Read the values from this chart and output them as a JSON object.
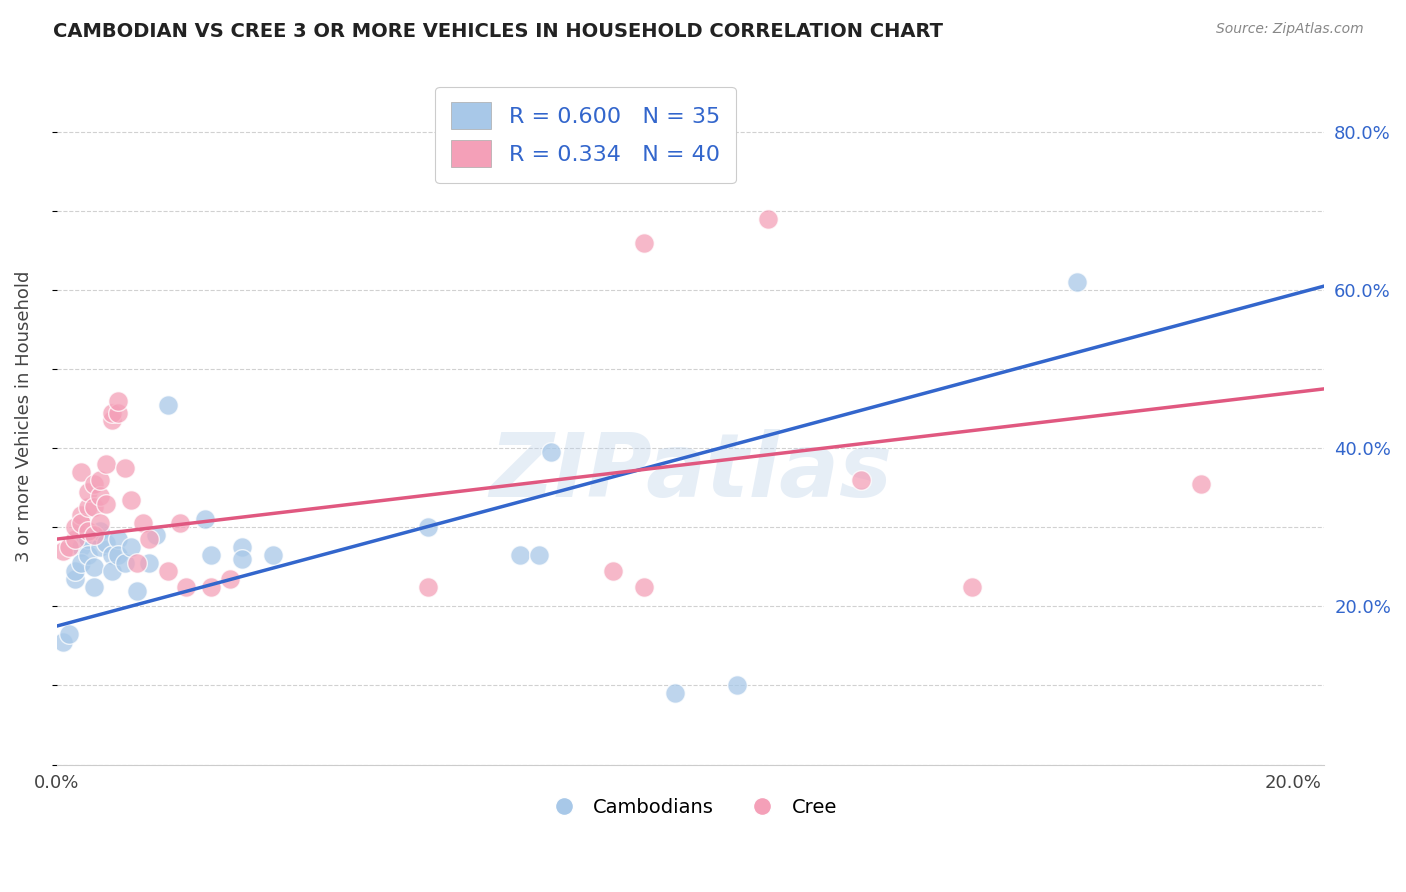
{
  "title": "CAMBODIAN VS CREE 3 OR MORE VEHICLES IN HOUSEHOLD CORRELATION CHART",
  "source": "Source: ZipAtlas.com",
  "ylabel": "3 or more Vehicles in Household",
  "xlabel_label_cambodians": "Cambodians",
  "xlabel_label_cree": "Cree",
  "watermark": "ZIPatlas",
  "blue_R": 0.6,
  "blue_N": 35,
  "pink_R": 0.334,
  "pink_N": 40,
  "xlim": [
    0.0,
    0.205
  ],
  "ylim": [
    0.0,
    0.88
  ],
  "blue_color": "#a8c8e8",
  "pink_color": "#f4a0b8",
  "blue_line_color": "#3366cc",
  "pink_line_color": "#e05880",
  "blue_scatter": [
    [
      0.001,
      0.155
    ],
    [
      0.002,
      0.165
    ],
    [
      0.003,
      0.235
    ],
    [
      0.003,
      0.245
    ],
    [
      0.004,
      0.275
    ],
    [
      0.004,
      0.255
    ],
    [
      0.005,
      0.285
    ],
    [
      0.005,
      0.265
    ],
    [
      0.006,
      0.25
    ],
    [
      0.006,
      0.225
    ],
    [
      0.007,
      0.275
    ],
    [
      0.007,
      0.295
    ],
    [
      0.008,
      0.28
    ],
    [
      0.009,
      0.265
    ],
    [
      0.009,
      0.245
    ],
    [
      0.01,
      0.285
    ],
    [
      0.01,
      0.265
    ],
    [
      0.011,
      0.255
    ],
    [
      0.012,
      0.275
    ],
    [
      0.013,
      0.22
    ],
    [
      0.015,
      0.255
    ],
    [
      0.016,
      0.29
    ],
    [
      0.018,
      0.455
    ],
    [
      0.024,
      0.31
    ],
    [
      0.025,
      0.265
    ],
    [
      0.03,
      0.275
    ],
    [
      0.03,
      0.26
    ],
    [
      0.035,
      0.265
    ],
    [
      0.06,
      0.3
    ],
    [
      0.075,
      0.265
    ],
    [
      0.078,
      0.265
    ],
    [
      0.08,
      0.395
    ],
    [
      0.1,
      0.09
    ],
    [
      0.11,
      0.1
    ],
    [
      0.165,
      0.61
    ]
  ],
  "pink_scatter": [
    [
      0.001,
      0.27
    ],
    [
      0.002,
      0.275
    ],
    [
      0.003,
      0.285
    ],
    [
      0.003,
      0.3
    ],
    [
      0.004,
      0.315
    ],
    [
      0.004,
      0.305
    ],
    [
      0.004,
      0.37
    ],
    [
      0.005,
      0.295
    ],
    [
      0.005,
      0.325
    ],
    [
      0.005,
      0.345
    ],
    [
      0.006,
      0.29
    ],
    [
      0.006,
      0.325
    ],
    [
      0.006,
      0.355
    ],
    [
      0.007,
      0.305
    ],
    [
      0.007,
      0.34
    ],
    [
      0.007,
      0.36
    ],
    [
      0.008,
      0.33
    ],
    [
      0.008,
      0.38
    ],
    [
      0.009,
      0.435
    ],
    [
      0.009,
      0.445
    ],
    [
      0.01,
      0.445
    ],
    [
      0.01,
      0.46
    ],
    [
      0.011,
      0.375
    ],
    [
      0.012,
      0.335
    ],
    [
      0.013,
      0.255
    ],
    [
      0.014,
      0.305
    ],
    [
      0.015,
      0.285
    ],
    [
      0.018,
      0.245
    ],
    [
      0.02,
      0.305
    ],
    [
      0.021,
      0.225
    ],
    [
      0.025,
      0.225
    ],
    [
      0.028,
      0.235
    ],
    [
      0.06,
      0.225
    ],
    [
      0.09,
      0.245
    ],
    [
      0.095,
      0.66
    ],
    [
      0.115,
      0.69
    ],
    [
      0.095,
      0.225
    ],
    [
      0.13,
      0.36
    ],
    [
      0.148,
      0.225
    ],
    [
      0.185,
      0.355
    ]
  ],
  "blue_trendline": [
    [
      0.0,
      0.175
    ],
    [
      0.205,
      0.605
    ]
  ],
  "pink_trendline": [
    [
      0.0,
      0.285
    ],
    [
      0.205,
      0.475
    ]
  ],
  "ytick_vals": [
    0.0,
    0.1,
    0.2,
    0.3,
    0.4,
    0.5,
    0.6,
    0.7,
    0.8
  ],
  "ytick_right_labels": [
    "",
    "",
    "20.0%",
    "",
    "40.0%",
    "",
    "60.0%",
    "",
    "80.0%"
  ],
  "xtick_vals": [
    0.0,
    0.02,
    0.04,
    0.06,
    0.08,
    0.1,
    0.12,
    0.14,
    0.16,
    0.18,
    0.2
  ],
  "xtick_labels": [
    "0.0%",
    "",
    "",
    "",
    "",
    "",
    "",
    "",
    "",
    "",
    "20.0%"
  ],
  "background_color": "#ffffff",
  "grid_color": "#cccccc"
}
